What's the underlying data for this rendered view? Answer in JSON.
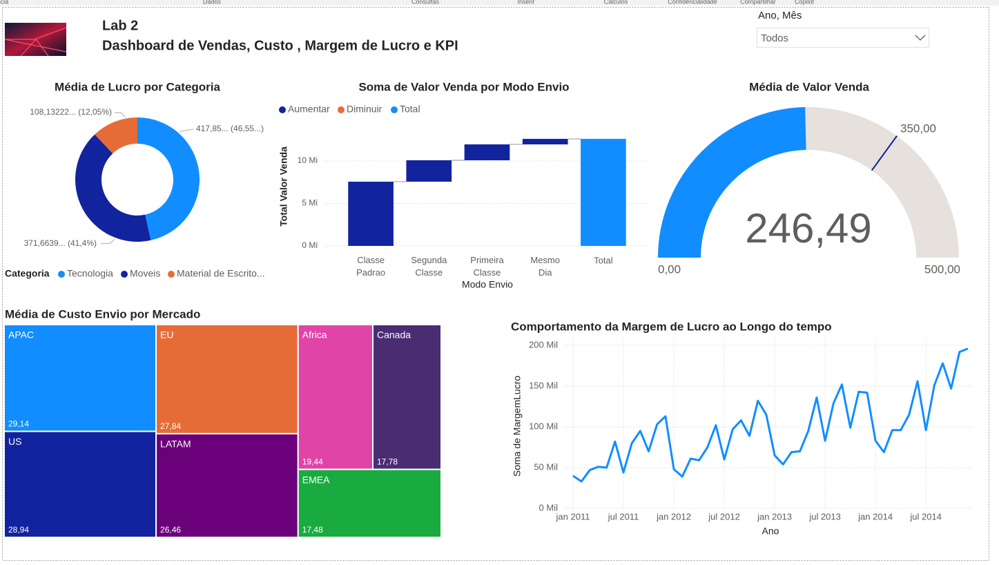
{
  "ribbon": [
    "ncia",
    "Dados",
    "Consultas",
    "Inserir",
    "Cálculos",
    "Confidencialidade",
    "Compartilhar",
    "Copilot"
  ],
  "header": {
    "title": "Lab 2",
    "subtitle": "Dashboard de Vendas, Custo , Margem de Lucro e KPI"
  },
  "slicer": {
    "label": "Ano, Mês",
    "value": "Todos"
  },
  "chart_data": [
    {
      "type": "donut",
      "title": "Média de Lucro por Categoria",
      "legend_title": "Categoria",
      "categories": [
        "Tecnologia",
        "Moveis",
        "Material de Escrito..."
      ],
      "values": [
        417.85,
        371.6639,
        108.13222
      ],
      "value_labels": [
        "417,85... (46,55...)",
        "371,6639... (41,4%)",
        "108,13222... (12,05%)"
      ],
      "colors": [
        "#118DFF",
        "#12239E",
        "#E66C37"
      ]
    },
    {
      "type": "waterfall",
      "title": "Soma de Valor Venda por Modo Envio",
      "x_label": "Modo Envio",
      "y_label": "Total Valor Venda",
      "legend": [
        {
          "name": "Aumentar",
          "color": "#12239E"
        },
        {
          "name": "Diminuir",
          "color": "#E66C37"
        },
        {
          "name": "Total",
          "color": "#118DFF"
        }
      ],
      "categories": [
        "Classe Padrao",
        "Segunda Classe",
        "Primeira Classe",
        "Mesmo Dia",
        "Total"
      ],
      "values": [
        7.56,
        2.52,
        1.87,
        0.65,
        12.6
      ],
      "ylim": [
        0,
        13.5
      ],
      "yticks": [
        {
          "value": 0,
          "label": "0 Mi"
        },
        {
          "value": 5,
          "label": "5 Mi"
        },
        {
          "value": 10,
          "label": "10 Mi"
        }
      ],
      "grid": true
    },
    {
      "type": "gauge",
      "title": "Média de Valor Venda",
      "value": 246.49,
      "value_label": "246,49",
      "min": {
        "value": 0,
        "label": "0,00"
      },
      "max": {
        "value": 500,
        "label": "500,00"
      },
      "target": {
        "value": 350,
        "label": "350,00"
      },
      "color": "#118DFF",
      "track_color": "#E6E1DC",
      "target_color": "#12239E"
    },
    {
      "type": "treemap",
      "title": "Média de Custo Envio por Mercado",
      "categories": [
        "APAC",
        "US",
        "EU",
        "LATAM",
        "Africa",
        "Canada",
        "EMEA"
      ],
      "values": [
        29.14,
        28.94,
        27.84,
        26.46,
        19.44,
        17.78,
        17.48
      ],
      "value_labels": [
        "29,14",
        "28,94",
        "27,84",
        "26,46",
        "19,44",
        "17,78",
        "17,48"
      ],
      "colors": [
        "#118DFF",
        "#12239E",
        "#E66C37",
        "#6B007B",
        "#E044A7",
        "#4A2C73",
        "#1AAB40"
      ]
    },
    {
      "type": "line",
      "title": "Comportamento da Margem de Lucro ao Longo do tempo",
      "x_label": "Ano",
      "y_label": "Soma de MargemLucro",
      "color": "#118DFF",
      "x": [
        "2011-01",
        "2011-02",
        "2011-03",
        "2011-04",
        "2011-05",
        "2011-06",
        "2011-07",
        "2011-08",
        "2011-09",
        "2011-10",
        "2011-11",
        "2011-12",
        "2012-01",
        "2012-02",
        "2012-03",
        "2012-04",
        "2012-05",
        "2012-06",
        "2012-07",
        "2012-08",
        "2012-09",
        "2012-10",
        "2012-11",
        "2012-12",
        "2013-01",
        "2013-02",
        "2013-03",
        "2013-04",
        "2013-05",
        "2013-06",
        "2013-07",
        "2013-08",
        "2013-09",
        "2013-10",
        "2013-11",
        "2013-12",
        "2014-01",
        "2014-02",
        "2014-03",
        "2014-04",
        "2014-05",
        "2014-06",
        "2014-07",
        "2014-08",
        "2014-09",
        "2014-10",
        "2014-11",
        "2014-12"
      ],
      "values": [
        40000,
        33000,
        47000,
        51000,
        50000,
        82000,
        44000,
        80000,
        95000,
        70000,
        103000,
        113000,
        48000,
        39000,
        61000,
        59000,
        75000,
        102000,
        60000,
        97000,
        108000,
        89000,
        132000,
        115000,
        65000,
        54000,
        69000,
        70000,
        95000,
        136000,
        83000,
        129000,
        152000,
        99000,
        143000,
        142000,
        83000,
        69000,
        96000,
        96000,
        115000,
        156000,
        96000,
        151000,
        178000,
        147000,
        192000,
        196000
      ],
      "ylim": [
        0,
        208000
      ],
      "yticks": [
        {
          "value": 0,
          "label": "0 Mil"
        },
        {
          "value": 50000,
          "label": "50 Mil"
        },
        {
          "value": 100000,
          "label": "100 Mil"
        },
        {
          "value": 150000,
          "label": "150 Mil"
        },
        {
          "value": 200000,
          "label": "200 Mil"
        }
      ],
      "xticks": [
        {
          "value": "2011-01",
          "label": "jan 2011"
        },
        {
          "value": "2011-07",
          "label": "jul 2011"
        },
        {
          "value": "2012-01",
          "label": "jan 2012"
        },
        {
          "value": "2012-07",
          "label": "jul 2012"
        },
        {
          "value": "2013-01",
          "label": "jan 2013"
        },
        {
          "value": "2013-07",
          "label": "jul 2013"
        },
        {
          "value": "2014-01",
          "label": "jan 2014"
        },
        {
          "value": "2014-07",
          "label": "jul 2014"
        }
      ],
      "grid": true
    }
  ]
}
